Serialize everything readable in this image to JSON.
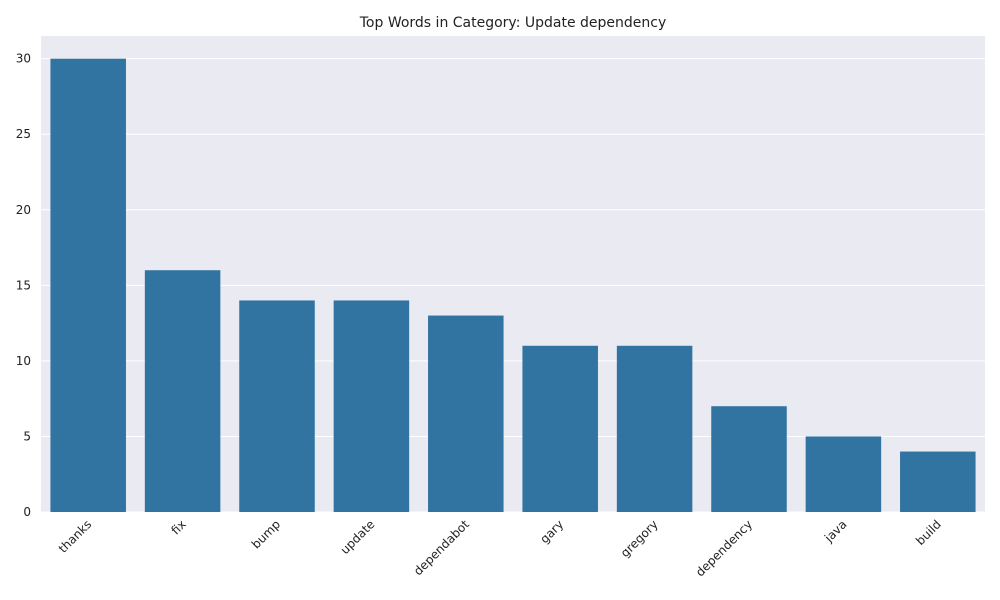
{
  "chart_data": {
    "type": "bar",
    "title": "Top Words in Category: Update dependency",
    "xlabel": "",
    "ylabel": "",
    "categories": [
      "thanks",
      "fix",
      "bump",
      "update",
      "dependabot",
      "gary",
      "gregory",
      "dependency",
      "java",
      "build"
    ],
    "values": [
      30,
      16,
      14,
      14,
      13,
      11,
      11,
      7,
      5,
      4
    ],
    "ylim": [
      0,
      31.5
    ],
    "yticks": [
      0,
      5,
      10,
      15,
      20,
      25,
      30
    ],
    "grid": true,
    "legend": "none",
    "colors": {
      "bar": "#3274a1",
      "background": "#eaeaf2",
      "grid": "#ffffff"
    }
  }
}
